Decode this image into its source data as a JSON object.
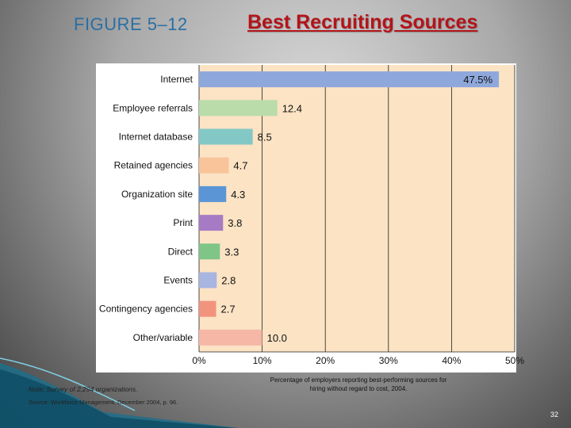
{
  "slide": {
    "figure_label": "FIGURE 5–12",
    "title": "Best Recruiting Sources",
    "caption": "Percentage of employers reporting best-performing sources for hiring without regard to cost, 2004.",
    "note": "Note: Survey of 2,294 organizations.",
    "source": "Source: Workforce Management, December 2004, p. 96.",
    "page_number": "32"
  },
  "colors": {
    "plot_background": "#fbe3c4",
    "title_red": "#b3141a",
    "figure_label_blue": "#2a6fa3"
  },
  "chart_data": {
    "type": "bar",
    "orientation": "horizontal",
    "categories": [
      "Internet",
      "Employee referrals",
      "Internet database",
      "Retained agencies",
      "Organization site",
      "Print",
      "Direct",
      "Events",
      "Contingency agencies",
      "Other/variable"
    ],
    "values": [
      47.5,
      12.4,
      8.5,
      4.7,
      4.3,
      3.8,
      3.3,
      2.8,
      2.7,
      10.0
    ],
    "value_labels": [
      "47.5%",
      "12.4",
      "8.5",
      "4.7",
      "4.3",
      "3.8",
      "3.3",
      "2.8",
      "2.7",
      "10.0"
    ],
    "bar_colors": [
      "#8fa8dc",
      "#b9dcaa",
      "#84c8c6",
      "#f9c49a",
      "#5b95d6",
      "#a67bc4",
      "#7fc587",
      "#a9b5e1",
      "#f2937e",
      "#f6b7a6"
    ],
    "xlim": [
      0,
      50
    ],
    "xticks": [
      "0%",
      "10%",
      "20%",
      "30%",
      "40%",
      "50%"
    ],
    "grid": true
  }
}
